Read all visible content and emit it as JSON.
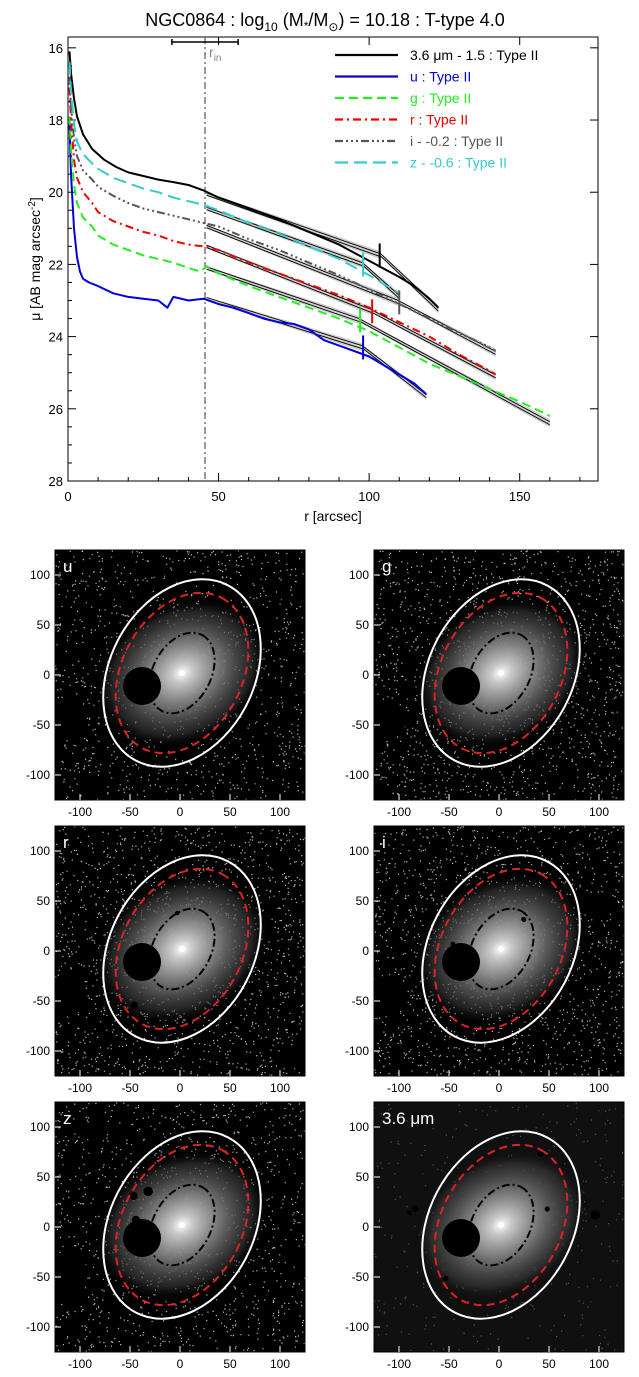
{
  "chart_data": [
    {
      "type": "line",
      "title_parts": [
        "NGC0864 : log",
        "10",
        " (M",
        "*",
        "/M",
        "⊙",
        ") = 10.18 : T-type 4.0"
      ],
      "xlabel": "r [arcsec]",
      "ylabel_parts": [
        "μ [AB mag arcsec",
        "-2",
        "]"
      ],
      "xlim": [
        0,
        176
      ],
      "ylim": [
        28,
        15.7
      ],
      "xticks": [
        0,
        50,
        100,
        150
      ],
      "xtick_labels": [
        "0",
        "50",
        "100",
        "150"
      ],
      "yticks": [
        16,
        18,
        20,
        22,
        24,
        26,
        28
      ],
      "ytick_labels": [
        "16",
        "18",
        "20",
        "22",
        "24",
        "26",
        "28"
      ],
      "r_in": {
        "value": 45.5,
        "label": "r",
        "sub": "in",
        "err": [
          34.5,
          56.5
        ]
      },
      "legend_position": "top-right",
      "series": [
        {
          "name": "3.6 μm - 1.5 : Type II",
          "color": "#000000",
          "dash": "",
          "break_r": 103.5,
          "x": [
            0.5,
            1,
            2,
            3,
            5,
            8,
            12,
            16,
            20,
            25,
            30,
            35,
            40,
            45,
            50,
            60,
            70,
            80,
            90,
            100,
            110,
            115,
            120,
            123
          ],
          "y": [
            16.1,
            16.7,
            17.4,
            17.9,
            18.4,
            18.8,
            19.1,
            19.3,
            19.45,
            19.55,
            19.65,
            19.72,
            19.8,
            19.95,
            20.15,
            20.45,
            20.75,
            21.1,
            21.45,
            21.9,
            22.35,
            22.6,
            22.95,
            23.2
          ],
          "fits": [
            [
              46,
              20.05,
              104,
              21.75
            ],
            [
              104,
              21.75,
              123,
              23.25
            ]
          ]
        },
        {
          "name": "u : Type II",
          "color": "#0000dd",
          "dash": "",
          "break_r": 98,
          "x": [
            0.5,
            1,
            2,
            3,
            4,
            5,
            7,
            10,
            15,
            20,
            25,
            30,
            33,
            35,
            40,
            45,
            50,
            55,
            60,
            65,
            70,
            75,
            80,
            85,
            90,
            95,
            100,
            105,
            110,
            115,
            119
          ],
          "y": [
            18.1,
            19.5,
            21.0,
            21.8,
            22.2,
            22.4,
            22.5,
            22.6,
            22.8,
            22.9,
            22.95,
            23.0,
            23.2,
            22.9,
            23.0,
            22.95,
            23.1,
            23.2,
            23.35,
            23.5,
            23.6,
            23.65,
            23.8,
            24.1,
            24.25,
            24.4,
            24.55,
            24.8,
            25.05,
            25.3,
            25.6
          ],
          "fits": [
            [
              46,
              22.95,
              98,
              24.3
            ],
            [
              98,
              24.3,
              119,
              25.65
            ]
          ]
        },
        {
          "name": "g : Type II",
          "color": "#22ee22",
          "dash": "9,5",
          "break_r": 97,
          "x": [
            0.5,
            1,
            2,
            3,
            5,
            8,
            10,
            15,
            20,
            25,
            30,
            35,
            40,
            44,
            46,
            50,
            60,
            70,
            80,
            90,
            100,
            110,
            120,
            130,
            140,
            150,
            155,
            160
          ],
          "y": [
            17.9,
            18.8,
            19.8,
            20.3,
            20.7,
            20.95,
            21.2,
            21.45,
            21.6,
            21.75,
            21.85,
            21.95,
            22.1,
            22.2,
            22.05,
            22.25,
            22.6,
            22.9,
            23.2,
            23.5,
            23.85,
            24.3,
            24.75,
            25.1,
            25.45,
            25.8,
            26.0,
            26.2
          ],
          "fits": [
            [
              46,
              22.1,
              97,
              23.55
            ],
            [
              97,
              23.55,
              160,
              26.4
            ]
          ]
        },
        {
          "name": "r : Type II",
          "color": "#ee0000",
          "dash": "8,4,2,4",
          "break_r": 101,
          "x": [
            0.5,
            1,
            2,
            3,
            5,
            8,
            10,
            15,
            20,
            25,
            30,
            35,
            40,
            45,
            50,
            60,
            70,
            80,
            90,
            100,
            110,
            120,
            130,
            140,
            142
          ],
          "y": [
            17.1,
            18.0,
            19.1,
            19.6,
            20.0,
            20.3,
            20.55,
            20.8,
            20.95,
            21.1,
            21.2,
            21.35,
            21.45,
            21.5,
            21.6,
            21.95,
            22.25,
            22.55,
            22.85,
            23.2,
            23.6,
            24.0,
            24.5,
            24.95,
            25.05
          ],
          "fits": [
            [
              46,
              21.5,
              101,
              23.3
            ],
            [
              101,
              23.3,
              142,
              25.1
            ]
          ]
        },
        {
          "name": "i - -0.2 : Type II",
          "color": "#555555",
          "dash": "8,3,2,3,2,3,2,3",
          "break_r": 110,
          "x": [
            0.5,
            1,
            2,
            3,
            5,
            8,
            10,
            15,
            20,
            25,
            30,
            35,
            40,
            45,
            50,
            60,
            70,
            80,
            90,
            100,
            110,
            120,
            130,
            140,
            142
          ],
          "y": [
            16.8,
            17.6,
            18.5,
            19.0,
            19.4,
            19.65,
            19.85,
            20.1,
            20.3,
            20.45,
            20.55,
            20.65,
            20.75,
            20.85,
            20.95,
            21.3,
            21.6,
            21.95,
            22.3,
            22.7,
            23.1,
            23.5,
            23.9,
            24.3,
            24.4
          ],
          "fits": [
            [
              46,
              20.95,
              110,
              23.05
            ],
            [
              110,
              23.05,
              142,
              24.45
            ]
          ]
        },
        {
          "name": "z - -0.6 : Type II",
          "color": "#33cccc",
          "dash": "13,6",
          "break_r": 98,
          "x": [
            0.5,
            1,
            2,
            3,
            5,
            8,
            10,
            15,
            20,
            25,
            30,
            35,
            40,
            45,
            50,
            60,
            70,
            80,
            90,
            100,
            105,
            110
          ],
          "y": [
            16.4,
            17.2,
            18.1,
            18.6,
            18.95,
            19.2,
            19.35,
            19.6,
            19.75,
            19.9,
            20.0,
            20.15,
            20.25,
            20.35,
            20.5,
            20.85,
            21.15,
            21.5,
            21.85,
            22.3,
            22.55,
            22.8
          ],
          "fits": [
            [
              46,
              20.45,
              98,
              22.0
            ],
            [
              98,
              22.0,
              110,
              22.9
            ]
          ]
        }
      ]
    },
    {
      "type": "image-panels",
      "panels": [
        {
          "label": "u",
          "x_tick_labels": [
            "-100",
            "-50",
            "0",
            "50",
            "100"
          ],
          "y_tick_labels": [
            "100",
            "50",
            "0",
            "-50",
            "-100"
          ],
          "noise": "sparse"
        },
        {
          "label": "g",
          "x_tick_labels": [
            "-100",
            "-50",
            "0",
            "50",
            "100"
          ],
          "y_tick_labels": [
            "100",
            "50",
            "0",
            "-50",
            "-100"
          ],
          "noise": "medium"
        },
        {
          "label": "r",
          "x_tick_labels": [
            "-100",
            "-50",
            "0",
            "50",
            "100"
          ],
          "y_tick_labels": [
            "100",
            "50",
            "0",
            "-50",
            "-100"
          ],
          "noise": "medium"
        },
        {
          "label": "i",
          "x_tick_labels": [
            "-100",
            "-50",
            "0",
            "50",
            "100"
          ],
          "y_tick_labels": [
            "100",
            "50",
            "0",
            "-50",
            "-100"
          ],
          "noise": "medium"
        },
        {
          "label": "z",
          "x_tick_labels": [
            "-100",
            "-50",
            "0",
            "50",
            "100"
          ],
          "y_tick_labels": [
            "100",
            "50",
            "0",
            "-50",
            "-100"
          ],
          "noise": "sparse"
        },
        {
          "label": "3.6 μm",
          "x_tick_labels": [
            "-100",
            "-50",
            "0",
            "50",
            "100"
          ],
          "y_tick_labels": [
            "100",
            "50",
            "0",
            "-50",
            "-100"
          ],
          "noise": "dark"
        }
      ]
    }
  ],
  "colors": {
    "outer_ellipse": "#ffffff",
    "disk_ellipse": "#dd2222",
    "inner_ellipse": "#000000"
  }
}
